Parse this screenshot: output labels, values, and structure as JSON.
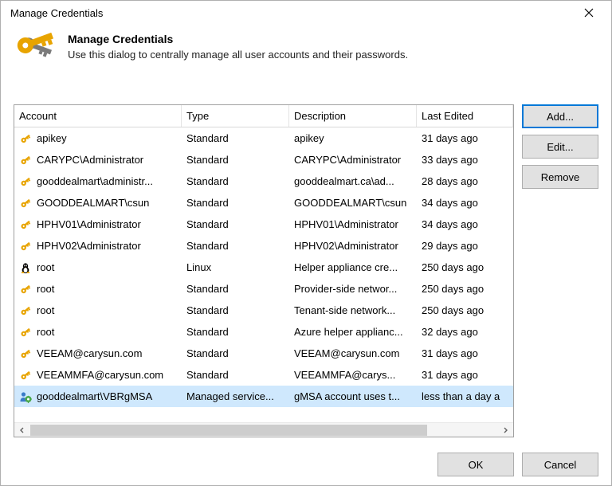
{
  "dialog": {
    "title": "Manage Credentials",
    "header_title": "Manage Credentials",
    "header_subtitle": "Use this dialog to centrally manage all user accounts and their passwords."
  },
  "columns": {
    "account": "Account",
    "type": "Type",
    "description": "Description",
    "last_edited": "Last Edited"
  },
  "buttons": {
    "add": "Add...",
    "edit": "Edit...",
    "remove": "Remove",
    "ok": "OK",
    "cancel": "Cancel"
  },
  "rows": [
    {
      "icon": "key",
      "account": "apikey",
      "type": "Standard",
      "description": "apikey",
      "last_edited": "31 days ago",
      "selected": false
    },
    {
      "icon": "key",
      "account": "CARYPC\\Administrator",
      "type": "Standard",
      "description": "CARYPC\\Administrator",
      "last_edited": "33 days ago",
      "selected": false
    },
    {
      "icon": "key",
      "account": "gooddealmart\\administr...",
      "type": "Standard",
      "description": "gooddealmart.ca\\ad...",
      "last_edited": "28 days ago",
      "selected": false
    },
    {
      "icon": "key",
      "account": "GOODDEALMART\\csun",
      "type": "Standard",
      "description": "GOODDEALMART\\csun",
      "last_edited": "34 days ago",
      "selected": false
    },
    {
      "icon": "key",
      "account": "HPHV01\\Administrator",
      "type": "Standard",
      "description": "HPHV01\\Administrator",
      "last_edited": "34 days ago",
      "selected": false
    },
    {
      "icon": "key",
      "account": "HPHV02\\Administrator",
      "type": "Standard",
      "description": "HPHV02\\Administrator",
      "last_edited": "29 days ago",
      "selected": false
    },
    {
      "icon": "linux",
      "account": "root",
      "type": "Linux",
      "description": "Helper appliance cre...",
      "last_edited": "250 days ago",
      "selected": false
    },
    {
      "icon": "key",
      "account": "root",
      "type": "Standard",
      "description": "Provider-side networ...",
      "last_edited": "250 days ago",
      "selected": false
    },
    {
      "icon": "key",
      "account": "root",
      "type": "Standard",
      "description": "Tenant-side network...",
      "last_edited": "250 days ago",
      "selected": false
    },
    {
      "icon": "key",
      "account": "root",
      "type": "Standard",
      "description": "Azure helper applianc...",
      "last_edited": "32 days ago",
      "selected": false
    },
    {
      "icon": "key",
      "account": "VEEAM@carysun.com",
      "type": "Standard",
      "description": "VEEAM@carysun.com",
      "last_edited": "31 days ago",
      "selected": false
    },
    {
      "icon": "key",
      "account": "VEEAMMFA@carysun.com",
      "type": "Standard",
      "description": "VEEAMMFA@carys...",
      "last_edited": "31 days ago",
      "selected": false
    },
    {
      "icon": "gmsa",
      "account": "gooddealmart\\VBRgMSA",
      "type": "Managed service...",
      "description": "gMSA account uses t...",
      "last_edited": "less than a day a",
      "selected": true
    }
  ],
  "style": {
    "accent_color": "#0078d7",
    "selection_color": "#cfe8fd",
    "button_bg": "#e1e1e1",
    "button_border": "#adadad",
    "grid_border": "#a0a0a0",
    "key_color_primary": "#e8a400",
    "key_color_secondary": "#7a7a7a"
  }
}
